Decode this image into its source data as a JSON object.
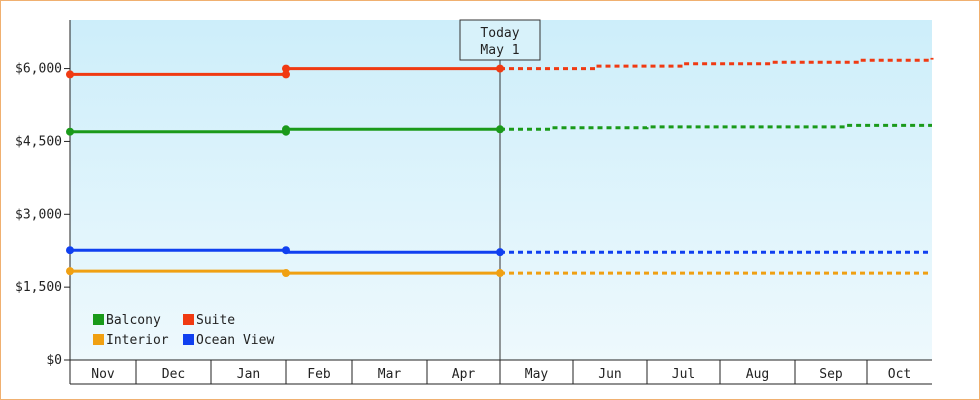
{
  "chart_data": {
    "type": "line",
    "x": [
      "Nov",
      "Dec",
      "Jan",
      "Feb",
      "Mar",
      "Apr",
      "May",
      "Jun",
      "Jul",
      "Aug",
      "Sep",
      "Oct"
    ],
    "ylim": [
      0,
      7000
    ],
    "y_ticks": [
      "$0",
      "$1,500",
      "$3,000",
      "$4,500",
      "$6,000"
    ],
    "y_tick_values": [
      0,
      1500,
      3000,
      4500,
      6000
    ],
    "grid": false,
    "legend_position": "bottom-left",
    "marker": {
      "lines": [
        "Today",
        "May 1"
      ],
      "x_value": 6.0
    },
    "series": [
      {
        "name": "Balcony",
        "color": "#1a9a1a",
        "actual": [
          [
            0,
            4700
          ],
          [
            3.0,
            4700
          ],
          [
            3.0,
            4750
          ],
          [
            6.0,
            4750
          ]
        ],
        "markers": [
          [
            0,
            4700
          ],
          [
            3.0,
            4700
          ],
          [
            3.0,
            4750
          ],
          [
            6.0,
            4750
          ]
        ],
        "forecast": [
          [
            6.0,
            4750
          ],
          [
            6.7,
            4750
          ],
          [
            6.7,
            4780
          ],
          [
            8.0,
            4780
          ],
          [
            8.0,
            4800
          ],
          [
            10.7,
            4800
          ],
          [
            10.7,
            4830
          ],
          [
            12.4,
            4830
          ]
        ]
      },
      {
        "name": "Suite",
        "color": "#f03a12",
        "actual": [
          [
            0,
            5880
          ],
          [
            3.0,
            5880
          ],
          [
            3.0,
            6000
          ],
          [
            6.0,
            6000
          ]
        ],
        "markers": [
          [
            0,
            5880
          ],
          [
            3.0,
            5880
          ],
          [
            3.0,
            6000
          ],
          [
            6.0,
            6000
          ]
        ],
        "forecast": [
          [
            6.0,
            6000
          ],
          [
            7.3,
            6000
          ],
          [
            7.3,
            6050
          ],
          [
            8.5,
            6050
          ],
          [
            8.5,
            6100
          ],
          [
            9.7,
            6100
          ],
          [
            9.7,
            6130
          ],
          [
            10.9,
            6130
          ],
          [
            10.9,
            6170
          ],
          [
            12.4,
            6170
          ],
          [
            12.4,
            6220
          ]
        ]
      },
      {
        "name": "Interior",
        "color": "#f0a012",
        "actual": [
          [
            0,
            1830
          ],
          [
            3.0,
            1830
          ],
          [
            3.0,
            1790
          ],
          [
            6.0,
            1790
          ]
        ],
        "markers": [
          [
            0,
            1830
          ],
          [
            3.0,
            1790
          ],
          [
            6.0,
            1790
          ]
        ],
        "forecast": [
          [
            6.0,
            1790
          ],
          [
            12.4,
            1790
          ]
        ]
      },
      {
        "name": "Ocean View",
        "color": "#1040f0",
        "actual": [
          [
            0,
            2260
          ],
          [
            3.0,
            2260
          ],
          [
            3.0,
            2220
          ],
          [
            6.0,
            2220
          ]
        ],
        "markers": [
          [
            0,
            2260
          ],
          [
            3.0,
            2260
          ],
          [
            6.0,
            2220
          ]
        ],
        "forecast": [
          [
            6.0,
            2220
          ],
          [
            12.4,
            2220
          ]
        ]
      }
    ],
    "legend": [
      {
        "name": "Balcony",
        "color": "#1a9a1a"
      },
      {
        "name": "Suite",
        "color": "#f03a12"
      },
      {
        "name": "Interior",
        "color": "#f0a012"
      },
      {
        "name": "Ocean View",
        "color": "#1040f0"
      }
    ]
  }
}
